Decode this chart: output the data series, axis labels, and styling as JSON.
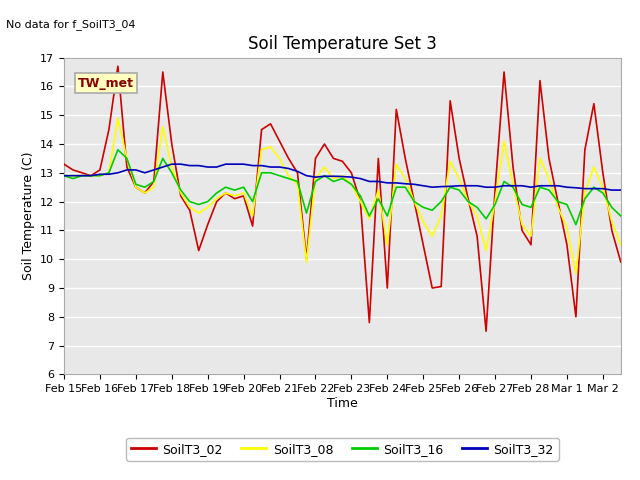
{
  "title": "Soil Temperature Set 3",
  "xlabel": "Time",
  "ylabel": "Soil Temperature (C)",
  "note": "No data for f_SoilT3_04",
  "tw_met_label": "TW_met",
  "ylim": [
    6.0,
    17.0
  ],
  "yticks": [
    6.0,
    7.0,
    8.0,
    9.0,
    10.0,
    11.0,
    12.0,
    13.0,
    14.0,
    15.0,
    16.0,
    17.0
  ],
  "legend": [
    {
      "label": "SoilT3_02",
      "color": "#cc0000"
    },
    {
      "label": "SoilT3_08",
      "color": "#ffff00"
    },
    {
      "label": "SoilT3_16",
      "color": "#00cc00"
    },
    {
      "label": "SoilT3_32",
      "color": "#0000bb"
    }
  ],
  "fig_bg": "#ffffff",
  "plot_bg": "#e8e8e8",
  "series": {
    "SoilT3_02": [
      13.3,
      13.1,
      13.0,
      12.9,
      13.1,
      14.5,
      16.7,
      13.2,
      12.5,
      12.3,
      12.7,
      16.5,
      14.0,
      12.2,
      11.7,
      10.3,
      11.2,
      12.0,
      12.3,
      12.1,
      12.2,
      11.15,
      14.5,
      14.7,
      14.1,
      13.5,
      13.0,
      10.0,
      13.5,
      14.0,
      13.5,
      13.4,
      13.0,
      12.0,
      7.8,
      13.5,
      9.0,
      15.2,
      13.5,
      12.0,
      10.5,
      9.0,
      9.05,
      15.5,
      13.5,
      12.1,
      10.8,
      7.5,
      12.4,
      16.5,
      13.2,
      11.0,
      10.5,
      16.2,
      13.5,
      12.0,
      10.5,
      8.0,
      13.8,
      15.4,
      13.0,
      11.0,
      9.9
    ],
    "SoilT3_08": [
      12.9,
      12.9,
      12.9,
      12.9,
      12.9,
      13.0,
      14.9,
      13.5,
      12.5,
      12.3,
      12.5,
      14.6,
      13.2,
      12.3,
      11.8,
      11.6,
      11.8,
      12.1,
      12.3,
      12.2,
      12.3,
      11.5,
      13.8,
      13.9,
      13.5,
      12.9,
      12.6,
      9.9,
      12.8,
      13.2,
      12.8,
      12.9,
      12.6,
      12.0,
      11.4,
      12.4,
      10.5,
      13.3,
      12.8,
      12.0,
      11.3,
      10.8,
      11.5,
      13.4,
      12.8,
      12.0,
      11.5,
      10.3,
      12.0,
      14.1,
      12.6,
      11.2,
      10.8,
      13.5,
      12.8,
      11.8,
      11.1,
      9.5,
      12.3,
      13.2,
      12.5,
      11.3,
      10.5
    ],
    "SoilT3_16": [
      12.9,
      12.8,
      12.9,
      12.9,
      12.9,
      13.0,
      13.8,
      13.5,
      12.6,
      12.5,
      12.7,
      13.5,
      13.0,
      12.4,
      12.0,
      11.9,
      12.0,
      12.3,
      12.5,
      12.4,
      12.5,
      12.0,
      13.0,
      13.0,
      12.9,
      12.8,
      12.7,
      11.6,
      12.7,
      12.9,
      12.7,
      12.8,
      12.6,
      12.2,
      11.5,
      12.1,
      11.5,
      12.5,
      12.5,
      12.0,
      11.8,
      11.7,
      12.0,
      12.5,
      12.4,
      12.0,
      11.8,
      11.4,
      11.9,
      12.7,
      12.5,
      11.9,
      11.8,
      12.5,
      12.4,
      12.0,
      11.9,
      11.2,
      12.1,
      12.5,
      12.3,
      11.8,
      11.5
    ],
    "SoilT3_32": [
      12.9,
      12.9,
      12.9,
      12.9,
      12.95,
      12.95,
      13.0,
      13.1,
      13.1,
      13.0,
      13.1,
      13.2,
      13.3,
      13.3,
      13.25,
      13.25,
      13.2,
      13.2,
      13.3,
      13.3,
      13.3,
      13.25,
      13.25,
      13.2,
      13.2,
      13.15,
      13.05,
      12.9,
      12.85,
      12.88,
      12.88,
      12.87,
      12.85,
      12.8,
      12.7,
      12.7,
      12.65,
      12.65,
      12.62,
      12.6,
      12.55,
      12.5,
      12.52,
      12.53,
      12.55,
      12.55,
      12.55,
      12.5,
      12.5,
      12.55,
      12.55,
      12.55,
      12.5,
      12.55,
      12.55,
      12.55,
      12.5,
      12.48,
      12.45,
      12.45,
      12.45,
      12.4,
      12.4
    ]
  },
  "n_points": 63,
  "xtick_labels": [
    "Feb 15",
    "Feb 16",
    "Feb 17",
    "Feb 18",
    "Feb 19",
    "Feb 20",
    "Feb 21",
    "Feb 22",
    "Feb 23",
    "Feb 24",
    "Feb 25",
    "Feb 26",
    "Feb 27",
    "Feb 28",
    "Mar 1",
    "Mar 2"
  ],
  "xtick_positions": [
    0,
    4,
    8,
    12,
    16,
    20,
    24,
    28,
    32,
    36,
    40,
    44,
    48,
    52,
    56,
    60
  ],
  "line_width": 1.2,
  "font_size_title": 12,
  "font_size_axis": 9,
  "font_size_tick": 8,
  "font_size_legend": 9
}
